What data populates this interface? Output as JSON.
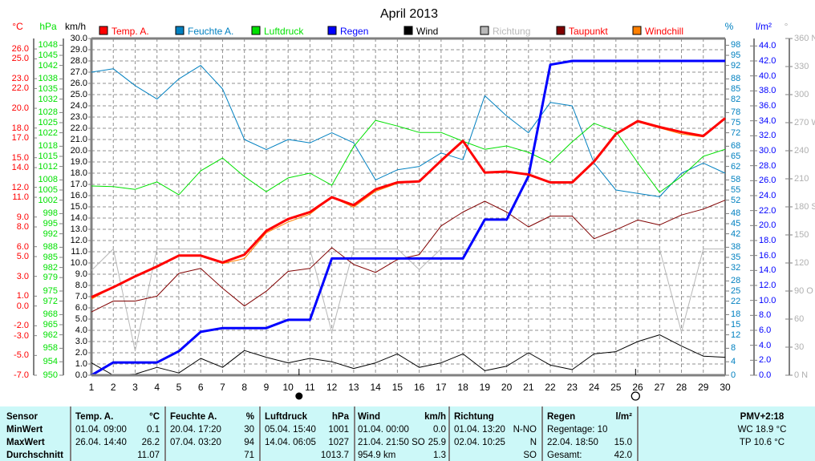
{
  "chart_data": {
    "type": "line",
    "title": "April 2013",
    "x": [
      1,
      2,
      3,
      4,
      5,
      6,
      7,
      8,
      9,
      10,
      11,
      12,
      13,
      14,
      15,
      16,
      17,
      18,
      19,
      20,
      21,
      22,
      23,
      24,
      25,
      26,
      27,
      28,
      29,
      30
    ],
    "axes": {
      "temp": {
        "label": "°C",
        "range": [
          -7,
          27.06
        ],
        "color": "#ff0000",
        "ticks": [
          26,
          25,
          23,
          22,
          20,
          18,
          17,
          15,
          14,
          12,
          11,
          9,
          8,
          6,
          5,
          3,
          1,
          0,
          -2,
          -3,
          -5,
          -7
        ],
        "decimals": 1
      },
      "pressure": {
        "label": "hPa",
        "range": [
          950,
          1050
        ],
        "color": "#00e000",
        "ticks": [
          1048,
          1045,
          1042,
          1038,
          1035,
          1032,
          1028,
          1025,
          1022,
          1018,
          1015,
          1012,
          1008,
          1005,
          1002,
          998,
          995,
          992,
          988,
          985,
          982,
          979,
          975,
          972,
          968,
          965,
          962,
          958,
          954,
          950
        ],
        "decimals": 0
      },
      "wind": {
        "label": "km/h",
        "range": [
          0,
          30
        ],
        "color": "#000000",
        "ticks": [
          0,
          1,
          2,
          3,
          4,
          5,
          6,
          7,
          8,
          9,
          10,
          11,
          12,
          13,
          14,
          15,
          16,
          17,
          18,
          19,
          20,
          21,
          22,
          23,
          24,
          25,
          26,
          27,
          28,
          29,
          30
        ],
        "decimals": 1
      },
      "humidity": {
        "label": "%",
        "range": [
          0,
          100
        ],
        "color": "#0080c0",
        "ticks": [
          98,
          95,
          92,
          88,
          85,
          82,
          78,
          75,
          72,
          68,
          65,
          62,
          58,
          55,
          52,
          48,
          45,
          42,
          38,
          35,
          32,
          28,
          25,
          22,
          18,
          15,
          12,
          8,
          4,
          0
        ],
        "decimals": 0
      },
      "rain": {
        "label": "l/m²",
        "range": [
          0,
          45
        ],
        "color": "#0000ff",
        "ticks": [
          0,
          2,
          4,
          6,
          8,
          10,
          12,
          14,
          16,
          18,
          20,
          22,
          24,
          26,
          28,
          30,
          32,
          34,
          36,
          38,
          40,
          42,
          44
        ],
        "decimals": 1
      },
      "direction": {
        "label": "°",
        "range": [
          0,
          360
        ],
        "color": "#b0b0b0",
        "ticks": [
          0,
          30,
          60,
          90,
          120,
          150,
          180,
          210,
          240,
          270,
          300,
          330,
          360
        ],
        "tick_labels": [
          "0  N",
          "30",
          "60",
          "90  O",
          "120",
          "150",
          "180 S",
          "210",
          "240",
          "270 W",
          "300",
          "330",
          "360 N"
        ],
        "decimals": 0
      }
    },
    "series": [
      {
        "name": "Temp. A.",
        "axis": "temp",
        "color": "#ff0000",
        "width": 3,
        "values": [
          0.9,
          1.9,
          3.0,
          4.0,
          5.1,
          5.1,
          4.4,
          5.2,
          7.6,
          8.8,
          9.5,
          11.0,
          10.2,
          11.8,
          12.5,
          12.6,
          14.7,
          16.7,
          13.5,
          13.6,
          13.3,
          12.5,
          12.5,
          14.6,
          17.4,
          18.7,
          18.1,
          17.6,
          17.2,
          19.0
        ]
      },
      {
        "name": "Feuchte A.",
        "axis": "humidity",
        "color": "#0080c0",
        "width": 1,
        "values": [
          90,
          91,
          86,
          82,
          88,
          92,
          85,
          70,
          67,
          70,
          69,
          72,
          69,
          58,
          61,
          62,
          66,
          64,
          83,
          77,
          72,
          81,
          80,
          63,
          55,
          54,
          53,
          60,
          63,
          60
        ]
      },
      {
        "name": "Luftdruck",
        "axis": "pressure",
        "color": "#00e000",
        "width": 1,
        "values": [
          1006.2,
          1006.0,
          1005.2,
          1007.4,
          1003.6,
          1010.7,
          1014.5,
          1009.0,
          1004.5,
          1008.6,
          1010.0,
          1006.4,
          1017.9,
          1025.7,
          1024.0,
          1022.1,
          1022.1,
          1019.5,
          1017.1,
          1018.1,
          1016.2,
          1013.1,
          1019.3,
          1024.8,
          1022.4,
          1013.1,
          1004.3,
          1009.0,
          1015.0,
          1017.1
        ]
      },
      {
        "name": "Regen",
        "axis": "rain",
        "color": "#0000ff",
        "width": 3,
        "values": [
          0,
          1.7,
          1.7,
          1.7,
          3.2,
          5.8,
          6.3,
          6.3,
          6.3,
          7.4,
          7.4,
          15.6,
          15.6,
          15.6,
          15.6,
          15.6,
          15.6,
          15.6,
          20.8,
          20.8,
          26.6,
          41.5,
          42.0,
          42.0,
          42.0,
          42.0,
          42.0,
          42.0,
          42.0,
          42.0
        ]
      },
      {
        "name": "Wind",
        "axis": "wind",
        "color": "#000000",
        "width": 1,
        "values": [
          1.1,
          0,
          0.1,
          0.7,
          0.2,
          1.5,
          0.7,
          2.2,
          1.6,
          1.1,
          1.5,
          1.2,
          0.6,
          1.1,
          1.9,
          0.7,
          1.1,
          1.9,
          0.4,
          0.8,
          2.0,
          0.9,
          0.5,
          1.9,
          2.1,
          3.0,
          3.6,
          2.6,
          1.7,
          1.6
        ]
      },
      {
        "name": "Richtung",
        "axis": "direction",
        "color": "#b8b8b8",
        "width": 1,
        "values": [
          112,
          135,
          26,
          135,
          135,
          135,
          135,
          135,
          135,
          135,
          135,
          46,
          135,
          135,
          135,
          113,
          135,
          135,
          135,
          135,
          135,
          135,
          135,
          135,
          135,
          135,
          135,
          46,
          135,
          135
        ]
      },
      {
        "name": "Taupunkt",
        "axis": "temp",
        "color": "#800000",
        "width": 1,
        "legend_text_color": "#ff0000",
        "values": [
          -0.6,
          0.5,
          0.5,
          1.0,
          3.3,
          3.8,
          1.8,
          0.0,
          1.5,
          3.5,
          3.8,
          5.9,
          4.2,
          3.4,
          4.7,
          5.2,
          8.1,
          9.5,
          10.6,
          9.5,
          8.0,
          9.1,
          9.1,
          6.8,
          7.7,
          8.7,
          8.2,
          9.2,
          9.8,
          10.7
        ]
      },
      {
        "name": "Windchill",
        "axis": "temp",
        "color": "#ff8000",
        "width": 1,
        "legend_text_color": "#ff0000",
        "values": [
          0.7,
          1.9,
          3.0,
          3.9,
          5.1,
          5.1,
          4.3,
          4.8,
          7.4,
          8.5,
          9.3,
          11.0,
          10.0,
          11.6,
          12.4,
          12.6,
          14.7,
          16.7,
          13.5,
          13.6,
          13.3,
          12.5,
          12.5,
          14.6,
          17.4,
          18.6,
          18.0,
          17.4,
          17.1,
          19.0
        ]
      }
    ],
    "moon_phases": [
      {
        "day": 10.5,
        "phase": "new"
      },
      {
        "day": 25.9,
        "phase": "full"
      }
    ]
  },
  "table": {
    "cols": [
      {
        "header": "Sensor",
        "unit": "",
        "rows": [
          [
            "MinWert",
            ""
          ],
          [
            "MaxWert",
            ""
          ],
          [
            "Durchschnitt",
            ""
          ]
        ]
      },
      {
        "header": "Temp. A.",
        "unit": "°C",
        "rows": [
          [
            "01.04.  09:00",
            "0.1"
          ],
          [
            "26.04.  14:40",
            "26.2"
          ],
          [
            "",
            "11.07"
          ]
        ]
      },
      {
        "header": "Feuchte A.",
        "unit": "%",
        "rows": [
          [
            "20.04.  17:20",
            "30"
          ],
          [
            "07.04.  03:20",
            "94"
          ],
          [
            "",
            "71"
          ]
        ]
      },
      {
        "header": "Luftdruck",
        "unit": "hPa",
        "rows": [
          [
            "05.04.  15:40",
            "1001"
          ],
          [
            "14.04.  06:05",
            "1027"
          ],
          [
            "",
            "1013.7"
          ]
        ]
      },
      {
        "header": "Wind",
        "unit": "km/h",
        "rows": [
          [
            "01.04.  00:00",
            "0.0"
          ],
          [
            "21.04.  21:50 SO",
            "25.9"
          ],
          [
            "954.9 km",
            "1.3"
          ]
        ]
      },
      {
        "header": "Richtung",
        "unit": "",
        "rows": [
          [
            "01.04.  13:20",
            "N-NO"
          ],
          [
            "02.04.  10:25",
            "N"
          ],
          [
            "",
            "SO"
          ]
        ]
      },
      {
        "header": "Regen",
        "unit": "l/m²",
        "rows": [
          [
            "Regentage: 10",
            ""
          ],
          [
            "22.04.  18:50",
            "15.0"
          ],
          [
            "Gesamt:",
            "42.0"
          ]
        ]
      }
    ],
    "pmv": {
      "title": "PMV+2:18",
      "wc": "WC 18.9 °C",
      "tp": "TP 10.6 °C"
    }
  }
}
